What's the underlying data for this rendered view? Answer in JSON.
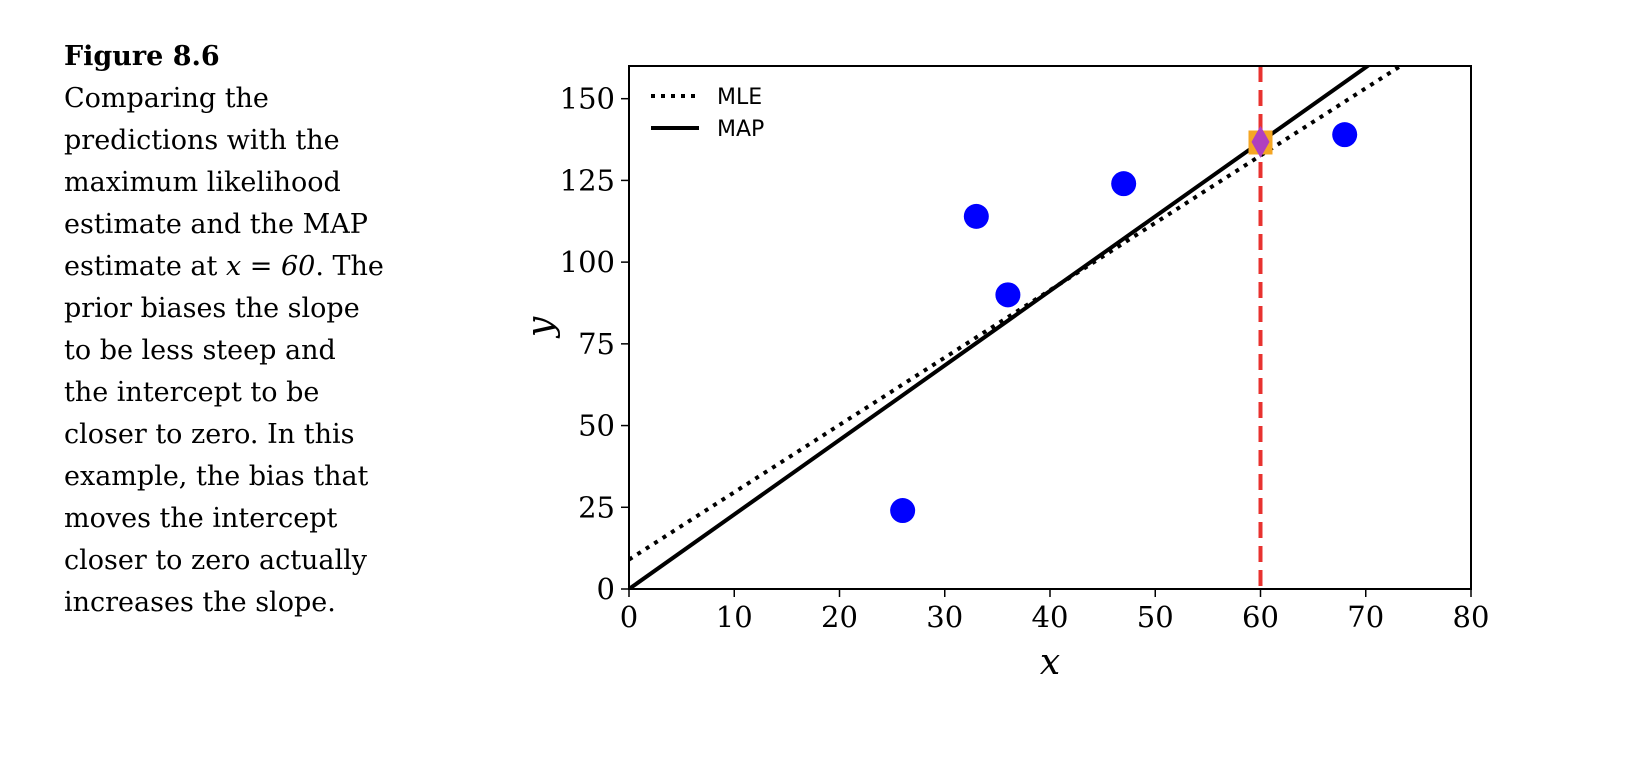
{
  "caption": {
    "title": "Figure 8.6",
    "line1": "Comparing the predictions with the maximum likelihood estimate and the MAP estimate at",
    "math": "x = 60",
    "line2": ". The prior biases the slope to be less steep and the intercept to be closer to zero. In this example, the bias that moves the intercept closer to zero actually increases the slope."
  },
  "chart_data": {
    "type": "scatter",
    "xlabel": "x",
    "ylabel": "y",
    "xlim": [
      0,
      80
    ],
    "ylim": [
      0,
      160
    ],
    "xticks": [
      0,
      10,
      20,
      30,
      40,
      50,
      60,
      70,
      80
    ],
    "yticks": [
      0,
      25,
      50,
      75,
      100,
      125,
      150
    ],
    "grid": false,
    "legend_position": "top-left",
    "points": {
      "color": "#0000ff",
      "x": [
        26,
        33,
        36,
        47,
        68
      ],
      "y": [
        24,
        114,
        90,
        124,
        139
      ]
    },
    "lines": [
      {
        "name": "MLE",
        "style": "dotted",
        "color": "#000000",
        "intercept": 9,
        "slope": 2.06
      },
      {
        "name": "MAP",
        "style": "solid",
        "color": "#000000",
        "intercept": 0,
        "slope": 2.28
      }
    ],
    "vline": {
      "x": 60,
      "style": "dashed",
      "color": "#e8322f"
    },
    "predictions": [
      {
        "marker": "square",
        "color": "#f5a623",
        "x": 60,
        "y": 136.6
      },
      {
        "marker": "diamond",
        "color": "#b03fbf",
        "x": 60,
        "y": 136.8
      }
    ]
  }
}
